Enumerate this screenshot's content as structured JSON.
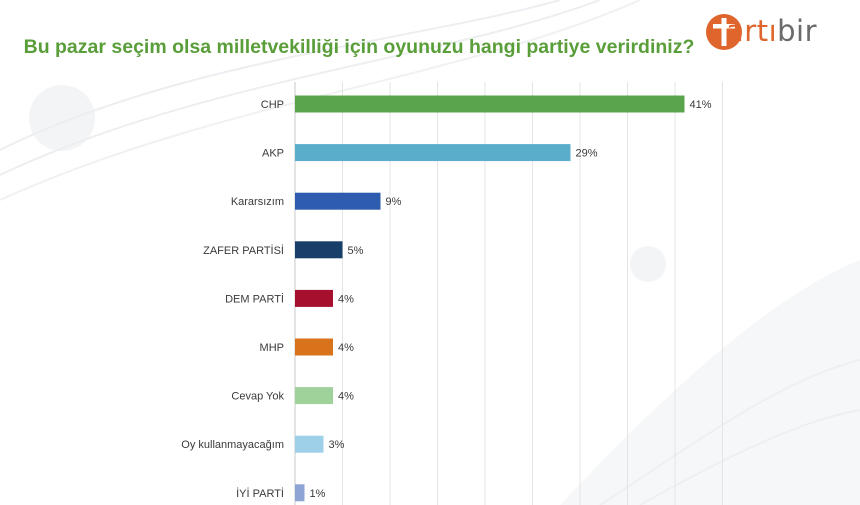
{
  "title": "Bu pazar seçim olsa milletvekilliği için oyunuzu hangi partiye verirdiniz?",
  "logo": {
    "prefix": "artı",
    "suffix": "bir",
    "accent_color": "#e0652d",
    "text_color": "#6b6b6b"
  },
  "chart_data": {
    "type": "bar",
    "orientation": "horizontal",
    "title": "Bu pazar seçim olsa milletvekilliği için oyunuzu hangi partiye verirdiniz?",
    "categories": [
      "CHP",
      "AKP",
      "Kararsızım",
      "ZAFER PARTİSİ",
      "DEM PARTİ",
      "MHP",
      "Cevap Yok",
      "Oy kullanmayacağım",
      "İYİ PARTİ"
    ],
    "values": [
      41,
      29,
      9,
      5,
      4,
      4,
      4,
      3,
      1
    ],
    "value_labels": [
      "41%",
      "29%",
      "9%",
      "5%",
      "4%",
      "4%",
      "4%",
      "3%",
      "1%"
    ],
    "colors": [
      "#5aa54c",
      "#5aaecb",
      "#2e5cae",
      "#173f6a",
      "#a6102e",
      "#d8731c",
      "#9fd19a",
      "#9fd0ea",
      "#8ea4d4"
    ],
    "unit": "%",
    "xlim": [
      0,
      45
    ],
    "grid": true,
    "legend": "none"
  }
}
